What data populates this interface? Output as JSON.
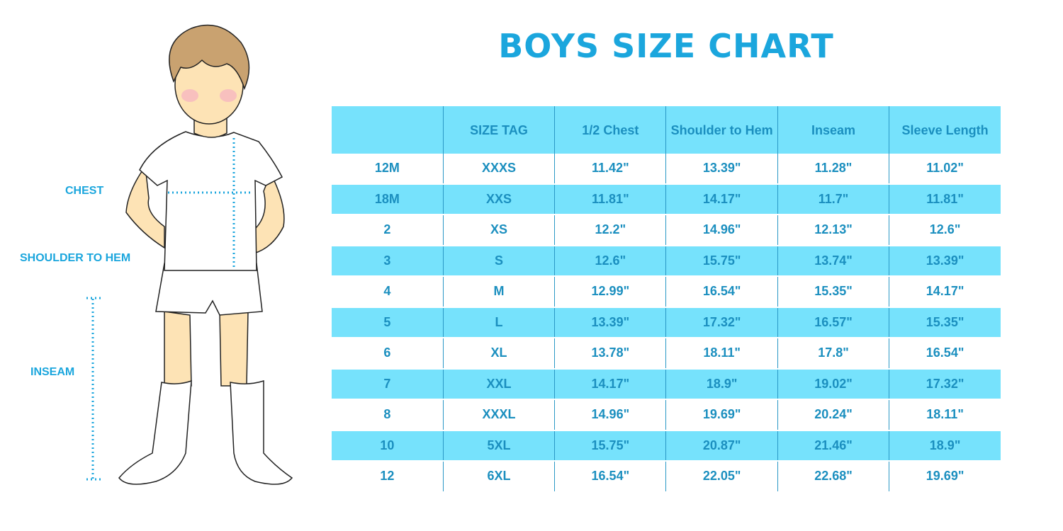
{
  "title": "BOYS SIZE CHART",
  "labels": {
    "chest": "CHEST",
    "shoulder_to_hem": "SHOULDER TO HEM",
    "inseam": "INSEAM"
  },
  "colors": {
    "accent": "#1ba6dd",
    "header_fill": "#76e2fc",
    "text": "#1b8fbf"
  },
  "chart_data": {
    "type": "table",
    "title": "BOYS SIZE CHART",
    "columns": [
      "",
      "SIZE TAG",
      "1/2 Chest",
      "Shoulder to Hem",
      "Inseam",
      "Sleeve Length"
    ],
    "rows": [
      [
        "12M",
        "XXXS",
        "11.42\"",
        "13.39\"",
        "11.28\"",
        "11.02\""
      ],
      [
        "18M",
        "XXS",
        "11.81\"",
        "14.17\"",
        "11.7\"",
        "11.81\""
      ],
      [
        "2",
        "XS",
        "12.2\"",
        "14.96\"",
        "12.13\"",
        "12.6\""
      ],
      [
        "3",
        "S",
        "12.6\"",
        "15.75\"",
        "13.74\"",
        "13.39\""
      ],
      [
        "4",
        "M",
        "12.99\"",
        "16.54\"",
        "15.35\"",
        "14.17\""
      ],
      [
        "5",
        "L",
        "13.39\"",
        "17.32\"",
        "16.57\"",
        "15.35\""
      ],
      [
        "6",
        "XL",
        "13.78\"",
        "18.11\"",
        "17.8\"",
        "16.54\""
      ],
      [
        "7",
        "XXL",
        "14.17\"",
        "18.9\"",
        "19.02\"",
        "17.32\""
      ],
      [
        "8",
        "XXXL",
        "14.96\"",
        "19.69\"",
        "20.24\"",
        "18.11\""
      ],
      [
        "10",
        "5XL",
        "15.75\"",
        "20.87\"",
        "21.46\"",
        "18.9\""
      ],
      [
        "12",
        "6XL",
        "16.54\"",
        "22.05\"",
        "22.68\"",
        "19.69\""
      ]
    ]
  }
}
